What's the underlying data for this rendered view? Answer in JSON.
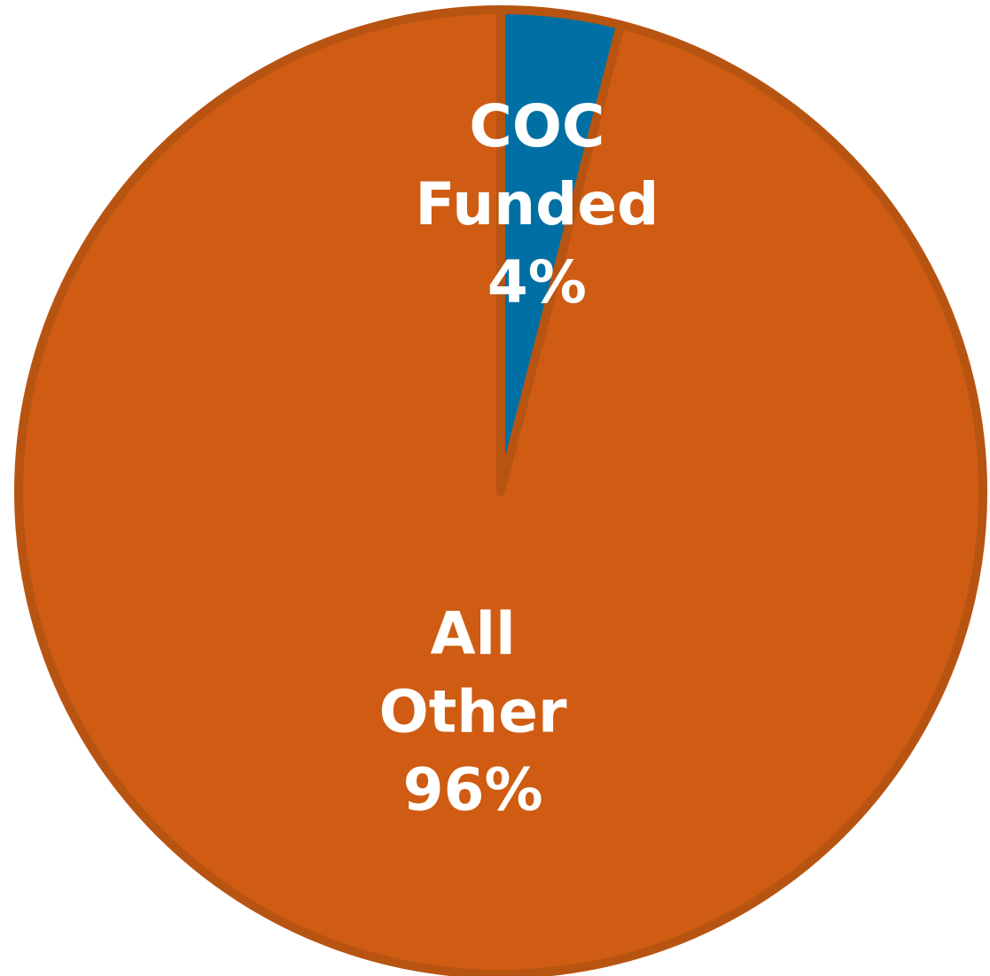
{
  "chart_data": {
    "type": "pie",
    "slices": [
      {
        "label_lines": [
          "COC",
          "Funded"
        ],
        "pct_label": "4%",
        "value": 4,
        "color": "#0070a4"
      },
      {
        "label_lines": [
          "All",
          "Other"
        ],
        "pct_label": "96%",
        "value": 96,
        "color": "#cf5c12"
      }
    ],
    "start_angle_deg": 0,
    "direction": "clockwise",
    "border_color": "#b85411",
    "legend": "none"
  }
}
